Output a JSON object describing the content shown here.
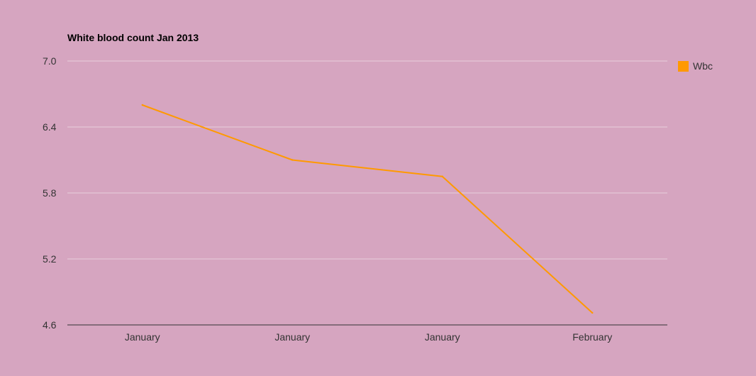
{
  "chart_data": {
    "type": "line",
    "title": "White blood count Jan 2013",
    "xlabel": "",
    "ylabel": "",
    "categories": [
      "January",
      "January",
      "January",
      "February"
    ],
    "series": [
      {
        "name": "Wbc",
        "values": [
          6.6,
          6.1,
          5.95,
          4.71
        ],
        "color": "#ff9900"
      }
    ],
    "ylim": [
      4.6,
      7.0
    ],
    "yticks": [
      "7.0",
      "6.4",
      "5.8",
      "5.2",
      "4.6"
    ],
    "grid": true,
    "legend": "right",
    "colors": {
      "background": "#d6a5c0",
      "gridline": "#e8cfdd",
      "axis": "#333333",
      "text": "#333333"
    }
  }
}
